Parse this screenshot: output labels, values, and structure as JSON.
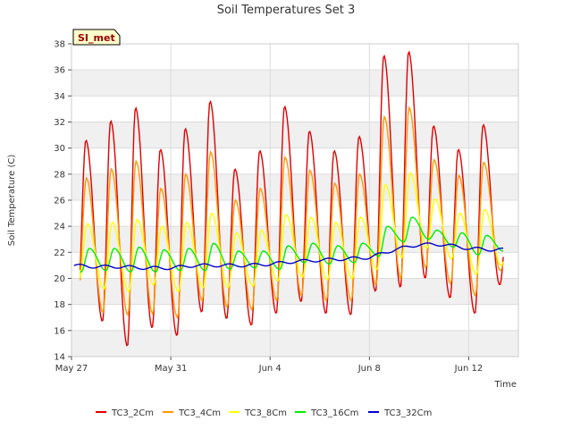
{
  "chart_data": {
    "type": "line",
    "title": "Soil Temperatures Set 3",
    "xlabel": "Time",
    "ylabel": "Soil Temperature (C)",
    "site_badge": "SI_met",
    "ylim": [
      14,
      38
    ],
    "yticks": [
      14,
      16,
      18,
      20,
      22,
      24,
      26,
      28,
      30,
      32,
      34,
      36,
      38
    ],
    "xlim": [
      "2023-05-27",
      "2023-06-14"
    ],
    "xticks": [
      {
        "date": "2023-05-27",
        "label": "May 27"
      },
      {
        "date": "2023-05-31",
        "label": "May 31"
      },
      {
        "date": "2023-06-04",
        "label": "Jun 4"
      },
      {
        "date": "2023-06-08",
        "label": "Jun 8"
      },
      {
        "date": "2023-06-12",
        "label": "Jun 12"
      }
    ],
    "grid": true,
    "legend_position": "bottom",
    "x_dates": [
      "2023-05-27",
      "2023-05-28",
      "2023-05-29",
      "2023-05-30",
      "2023-05-31",
      "2023-06-01",
      "2023-06-02",
      "2023-06-03",
      "2023-06-04",
      "2023-06-05",
      "2023-06-06",
      "2023-06-07",
      "2023-06-08",
      "2023-06-09",
      "2023-06-10",
      "2023-06-11",
      "2023-06-12",
      "2023-06-13"
    ],
    "series": [
      {
        "name": "TC3_2Cm",
        "color": "#e00000",
        "daily_max": [
          30.6,
          32.1,
          33.1,
          29.9,
          31.5,
          33.6,
          28.4,
          29.8,
          33.2,
          31.3,
          29.8,
          30.9,
          37.1,
          37.4,
          31.7,
          29.9,
          31.8,
          25.0
        ],
        "daily_min": [
          18.0,
          16.7,
          14.8,
          16.2,
          15.6,
          17.4,
          16.9,
          16.4,
          17.3,
          18.2,
          17.3,
          17.2,
          19.0,
          19.3,
          20.0,
          18.5,
          17.3,
          19.5
        ]
      },
      {
        "name": "TC3_4Cm",
        "color": "#ff9900",
        "daily_max": [
          27.7,
          28.4,
          29.0,
          26.9,
          28.0,
          29.7,
          26.0,
          26.9,
          29.3,
          28.3,
          27.3,
          28.0,
          32.4,
          33.1,
          29.1,
          27.9,
          28.9,
          22.5
        ],
        "daily_min": [
          18.6,
          17.4,
          17.2,
          17.3,
          17.0,
          18.3,
          17.8,
          17.6,
          18.3,
          18.7,
          18.3,
          18.3,
          19.5,
          20.0,
          20.8,
          19.6,
          18.7,
          20.6
        ]
      },
      {
        "name": "TC3_8Cm",
        "color": "#ffff00",
        "daily_max": [
          24.2,
          24.3,
          24.5,
          24.0,
          24.3,
          25.0,
          23.5,
          23.7,
          24.9,
          24.7,
          24.3,
          24.7,
          27.2,
          28.1,
          26.1,
          25.0,
          25.3,
          23.0
        ],
        "daily_min": [
          19.9,
          19.2,
          19.0,
          19.5,
          19.0,
          19.3,
          19.3,
          19.4,
          19.8,
          20.1,
          19.9,
          20.0,
          20.7,
          21.6,
          22.3,
          21.5,
          20.3,
          21.0
        ]
      },
      {
        "name": "TC3_16Cm",
        "color": "#00ee00",
        "daily_max": [
          22.3,
          22.3,
          22.4,
          22.2,
          22.3,
          22.7,
          22.1,
          22.1,
          22.5,
          22.7,
          22.5,
          22.7,
          24.0,
          24.7,
          23.7,
          23.5,
          23.3,
          22.9
        ],
        "daily_min": [
          20.5,
          20.6,
          20.5,
          20.5,
          20.6,
          20.6,
          20.7,
          20.8,
          20.7,
          21.2,
          21.1,
          21.2,
          21.7,
          22.8,
          23.0,
          22.4,
          21.8,
          22.1
        ]
      },
      {
        "name": "TC3_32Cm",
        "color": "#0000cc",
        "daily_mean": [
          21.0,
          20.9,
          20.9,
          20.8,
          20.8,
          21.0,
          21.0,
          21.0,
          21.1,
          21.3,
          21.4,
          21.5,
          21.6,
          22.2,
          22.6,
          22.6,
          22.3,
          22.2
        ]
      }
    ]
  }
}
